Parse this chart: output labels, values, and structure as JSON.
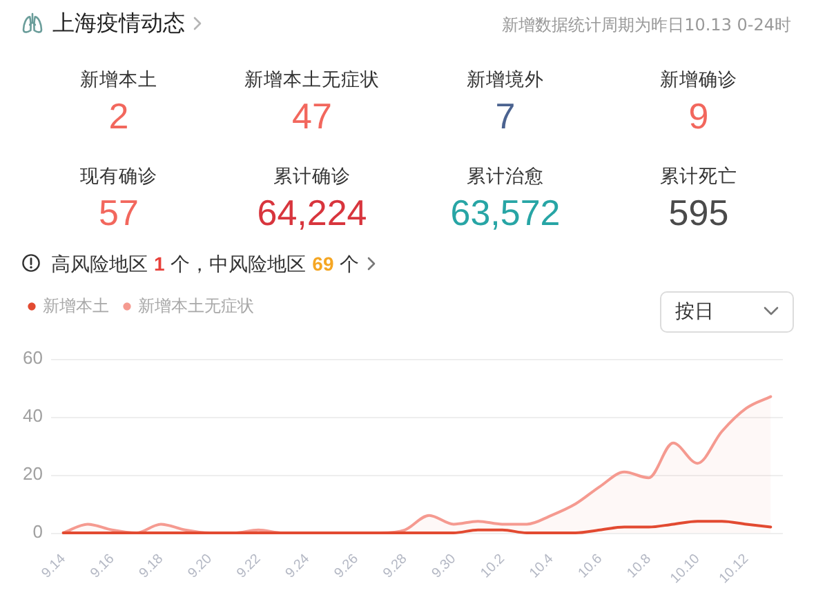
{
  "chart_data": [
    {
      "type": "other",
      "title": "上海疫情动态",
      "subtitle": "新增数据统计周期为昨日10.13 0-24时",
      "categories": [
        "新增本土",
        "新增本土无症状",
        "新增境外",
        "新增确诊",
        "现有确诊",
        "累计确诊",
        "累计治愈",
        "累计死亡"
      ],
      "values": [
        2,
        47,
        7,
        9,
        57,
        64224,
        63572,
        595
      ],
      "value_labels": [
        "2",
        "47",
        "7",
        "9",
        "57",
        "64,224",
        "63,572",
        "595"
      ],
      "colors": [
        "#f2675d",
        "#f2675d",
        "#4b6390",
        "#f2675d",
        "#f2675d",
        "#d8353d",
        "#27a5a5",
        "#4a4a4a"
      ],
      "annotations": [
        "高风险地区 1 个，中风险地区 69 个"
      ]
    },
    {
      "type": "line",
      "categories": [
        "9.14",
        null,
        "9.16",
        null,
        "9.18",
        null,
        "9.20",
        null,
        "9.22",
        null,
        "9.24",
        null,
        "9.26",
        null,
        "9.28",
        null,
        "9.30",
        null,
        "10.2",
        null,
        "10.4",
        null,
        "10.6",
        null,
        "10.8",
        null,
        "10.10",
        null,
        "10.12",
        null
      ],
      "series": [
        {
          "name": "新增本土",
          "color": "#e24a31",
          "values": [
            0,
            0,
            0,
            0,
            0,
            0,
            0,
            0,
            0,
            0,
            0,
            0,
            0,
            0,
            0,
            0,
            0,
            1,
            1,
            0,
            0,
            0,
            1,
            2,
            2,
            3,
            4,
            4,
            3,
            2
          ]
        },
        {
          "name": "新增本土无症状",
          "type": "area",
          "color": "#f59a90",
          "values": [
            0,
            3,
            1,
            0,
            3,
            1,
            0,
            0,
            1,
            0,
            0,
            0,
            0,
            0,
            1,
            6,
            3,
            4,
            3,
            3,
            6,
            10,
            16,
            21,
            19,
            31,
            24,
            35,
            43,
            47
          ]
        }
      ],
      "ylim": [
        0,
        60
      ],
      "yticks": [
        0,
        20,
        40,
        60
      ],
      "grid": "y",
      "legend": "top left",
      "marker": "none",
      "annotations": [
        "按日"
      ]
    }
  ]
}
